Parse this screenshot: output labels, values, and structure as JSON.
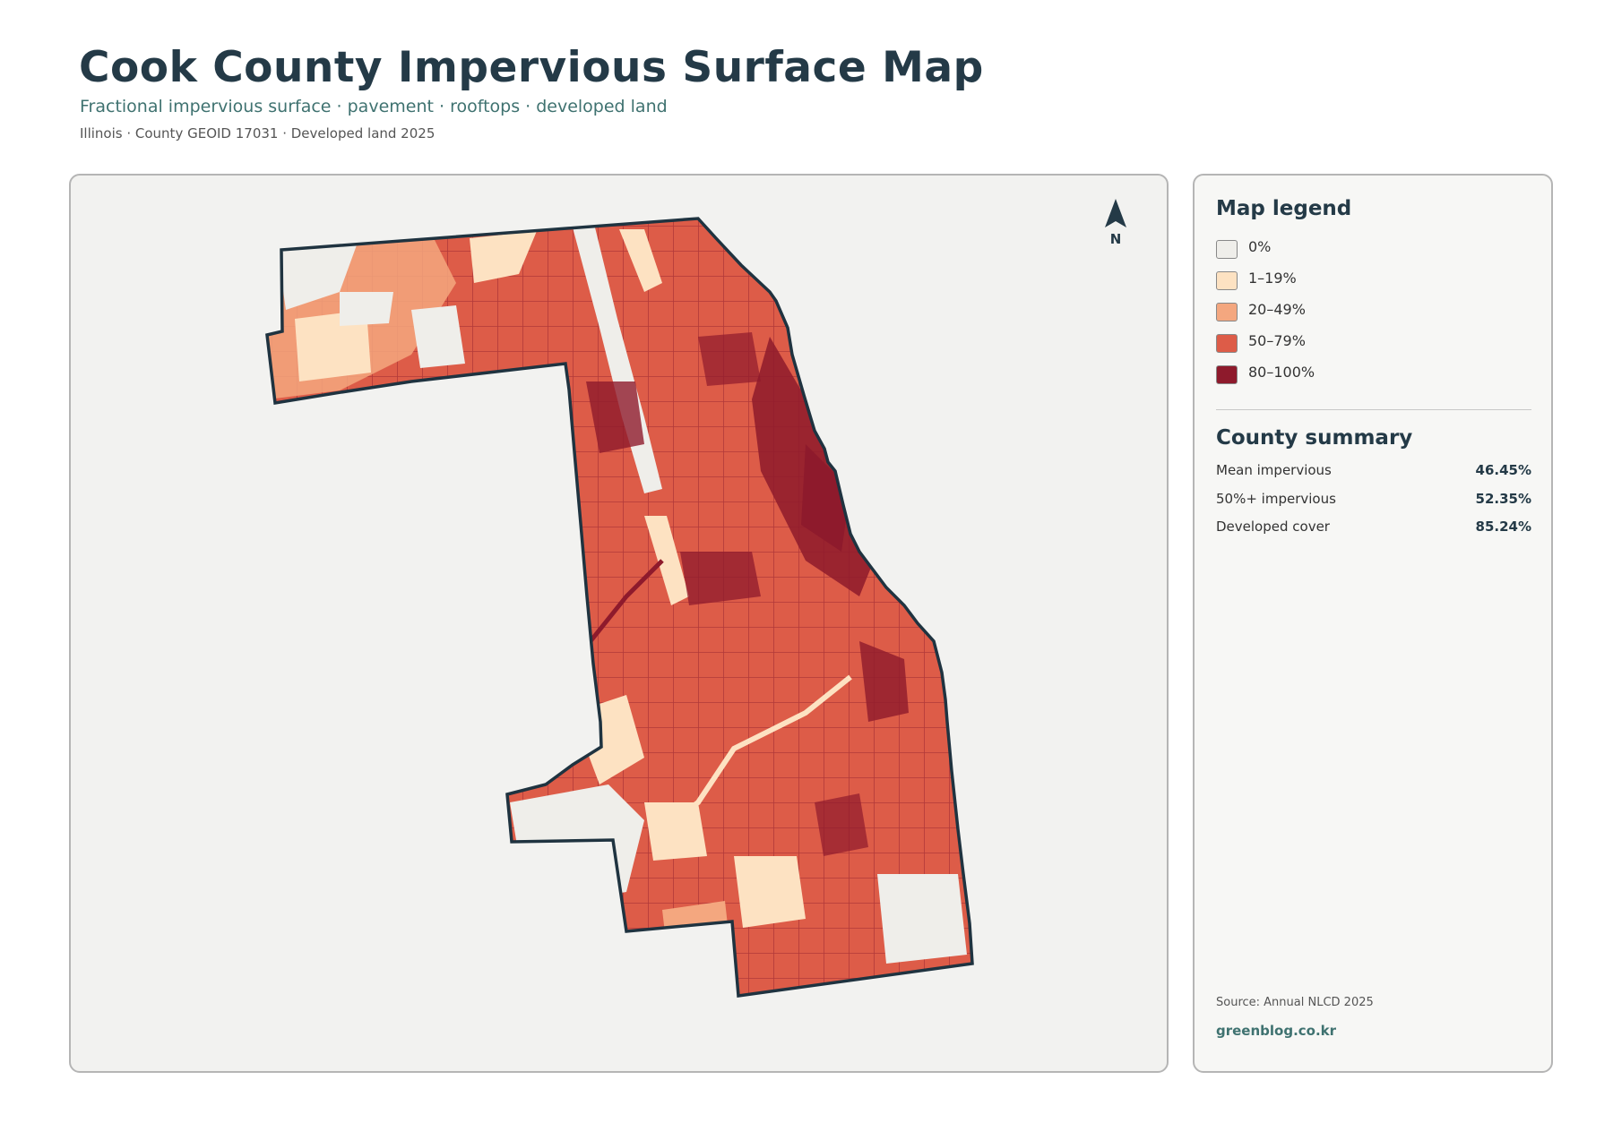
{
  "header": {
    "title": "Cook County Impervious Surface Map",
    "subtitle": "Fractional impervious surface · pavement · rooftops · developed land",
    "meta": "Illinois · County GEOID 17031 · Developed land 2025"
  },
  "map": {
    "north_label": "N",
    "colors": {
      "background": "#f2f2f0",
      "outline": "#1f3340"
    }
  },
  "legend": {
    "heading": "Map legend",
    "items": [
      {
        "label": "0%",
        "color": "#efeeea"
      },
      {
        "label": "1–19%",
        "color": "#fde2c2"
      },
      {
        "label": "20–49%",
        "color": "#f4a77f"
      },
      {
        "label": "50–79%",
        "color": "#dd5c48"
      },
      {
        "label": "80–100%",
        "color": "#8e1a2c"
      }
    ]
  },
  "summary": {
    "heading": "County summary",
    "rows": [
      {
        "label": "Mean impervious",
        "value": "46.45%"
      },
      {
        "label": "50%+ impervious",
        "value": "52.35%"
      },
      {
        "label": "Developed cover",
        "value": "85.24%"
      }
    ]
  },
  "footer": {
    "source": "Source: Annual NLCD 2025",
    "site": "greenblog.co.kr"
  }
}
